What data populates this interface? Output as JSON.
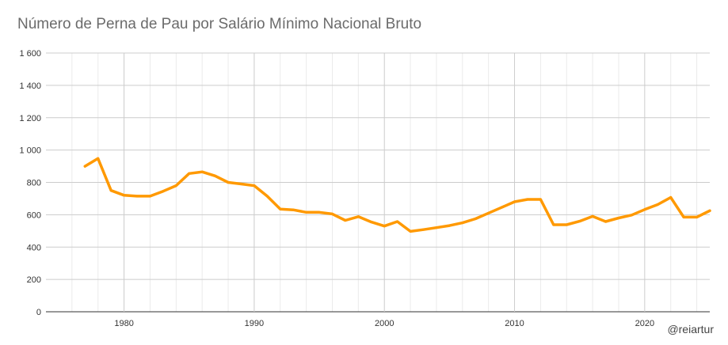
{
  "title": "Número de Perna de Pau por Salário Mínimo Nacional Bruto",
  "credit": "@reiartur",
  "colors": {
    "line": "#ff9900",
    "grid_major": "#cccccc",
    "grid_minor": "#ebebeb",
    "text": "#333333"
  },
  "chart_data": {
    "type": "line",
    "title": "Número de Perna de Pau por Salário Mínimo Nacional Bruto",
    "xlabel": "",
    "ylabel": "",
    "xlim": [
      1974,
      2025
    ],
    "ylim": [
      0,
      1600
    ],
    "x_ticks": [
      "1980",
      "1990",
      "2000",
      "2010",
      "2020"
    ],
    "y_ticks": [
      "0",
      "200",
      "400",
      "600",
      "800",
      "1 000",
      "1 200",
      "1 400",
      "1 600"
    ],
    "grid": true,
    "legend": "none",
    "series": [
      {
        "x": [
          1977,
          1978,
          1979,
          1980,
          1981,
          1982,
          1983,
          1984,
          1985,
          1986,
          1987,
          1988,
          1989,
          1990,
          1991,
          1992,
          1993,
          1994,
          1995,
          1996,
          1997,
          1998,
          1999,
          2000,
          2001,
          2002,
          2003,
          2004,
          2005,
          2006,
          2007,
          2008,
          2009,
          2010,
          2011,
          2012,
          2013,
          2014,
          2015,
          2016,
          2017,
          2018,
          2019,
          2020,
          2021,
          2022,
          2023,
          2024,
          2025
        ],
        "values": [
          900,
          948,
          750,
          720,
          715,
          715,
          745,
          780,
          855,
          865,
          840,
          800,
          790,
          780,
          715,
          635,
          630,
          615,
          615,
          605,
          565,
          588,
          555,
          530,
          558,
          497,
          508,
          520,
          533,
          550,
          575,
          610,
          645,
          680,
          695,
          695,
          538,
          538,
          560,
          590,
          558,
          580,
          598,
          632,
          663,
          707,
          585,
          585,
          625
        ]
      }
    ]
  }
}
